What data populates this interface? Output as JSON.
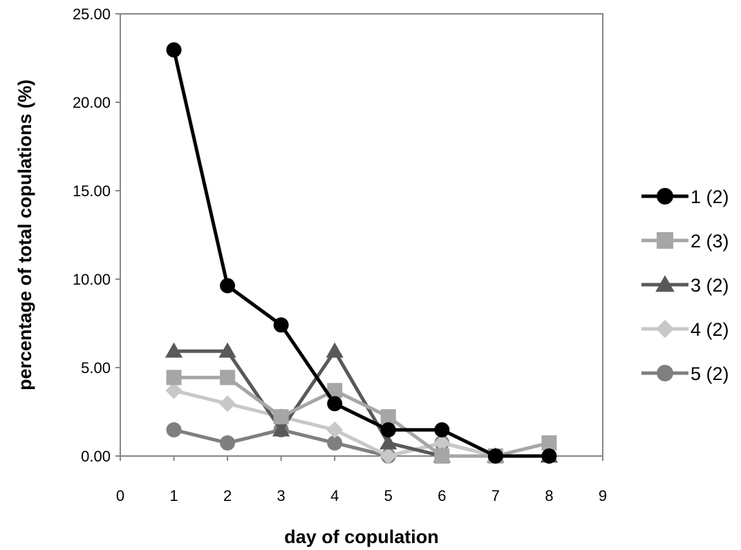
{
  "chart_data": {
    "type": "line",
    "title": "",
    "xlabel": "day of copulation",
    "ylabel": "percentage of total copulations (%)",
    "xlim": [
      0,
      9
    ],
    "ylim": [
      0,
      25
    ],
    "xticks": [
      "0",
      "1",
      "2",
      "3",
      "4",
      "5",
      "6",
      "7",
      "8",
      "9"
    ],
    "yticks": [
      "0.00",
      "5.00",
      "10.00",
      "15.00",
      "20.00",
      "25.00"
    ],
    "grid": false,
    "legend_position": "right",
    "x": [
      1,
      2,
      3,
      4,
      5,
      6,
      7,
      8
    ],
    "series": [
      {
        "name": "1 (2)",
        "marker": "circle",
        "color": "#000000",
        "values": [
          22.96,
          9.63,
          7.41,
          2.96,
          1.48,
          1.48,
          0.0,
          0.0
        ]
      },
      {
        "name": "2 (3)",
        "marker": "square",
        "color": "#a6a6a6",
        "values": [
          4.44,
          4.44,
          2.22,
          3.7,
          2.22,
          0.0,
          0.0,
          0.74
        ]
      },
      {
        "name": "3 (2)",
        "marker": "triangle",
        "color": "#595959",
        "values": [
          5.93,
          5.93,
          1.48,
          5.93,
          0.74,
          0.0,
          0.0,
          0.0
        ]
      },
      {
        "name": "4 (2)",
        "marker": "diamond",
        "color": "#c8c8c8",
        "values": [
          3.7,
          2.96,
          2.22,
          1.48,
          0.0,
          0.74,
          0.0,
          0.0
        ]
      },
      {
        "name": "5 (2)",
        "marker": "circle",
        "color": "#7f7f7f",
        "values": [
          1.48,
          0.74,
          1.48,
          0.74,
          0.0,
          0.74,
          0.0,
          0.0
        ]
      }
    ]
  }
}
